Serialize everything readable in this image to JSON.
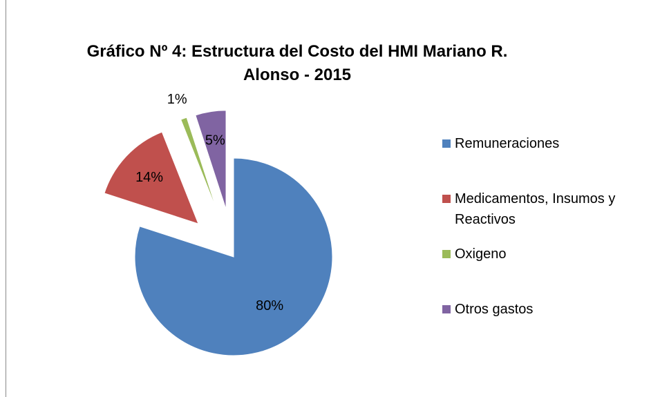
{
  "chart_data": {
    "type": "pie",
    "title": "Gráfico Nº 4: Estructura del Costo del HMI Mariano R. Alonso - 2015",
    "categories": [
      "Remuneraciones",
      "Medicamentos, Insumos y Reactivos",
      "Oxigeno",
      "Otros gastos"
    ],
    "values": [
      80,
      14,
      1,
      5
    ],
    "value_labels": [
      "80%",
      "14%",
      "1%",
      "5%"
    ],
    "colors": [
      "#4f81bd",
      "#c0504d",
      "#9bbb59",
      "#8064a2"
    ],
    "legend": "right"
  }
}
